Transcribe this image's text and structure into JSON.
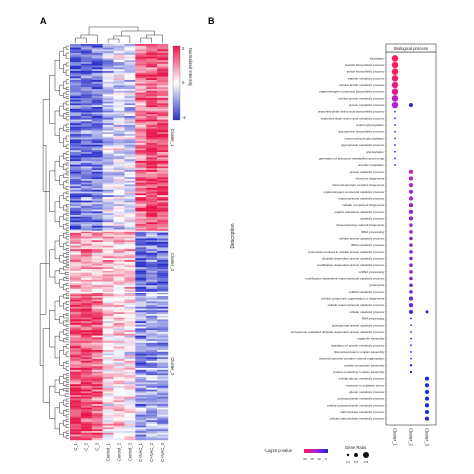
{
  "panel_a": {
    "label": "A",
    "samples": [
      "C_1",
      "C_2",
      "C_3",
      "Control_1",
      "Control_2",
      "Control_3",
      "C+NAC_1",
      "C+NAC_2",
      "C+NAC_3"
    ],
    "colorbar_title": "Normalized Intensity",
    "colorbar_ticks": [
      "2",
      "0",
      "-2"
    ],
    "clusters": [
      "Cluster_1",
      "Cluster_3",
      "Cluster_2"
    ],
    "colors": {
      "high": "#e8174a",
      "mid": "#ffffff",
      "low": "#2a33c9"
    }
  },
  "panel_b": {
    "label": "B",
    "facet_title": "Biological process",
    "x_title": "",
    "y_title": "Description",
    "legend_color_title": "-Log10 p-value",
    "legend_color_ticks": [
      "20",
      "15",
      "10",
      "5"
    ],
    "legend_size_title": "Gene Ratio",
    "legend_size_ticks": [
      "0.1",
      "0.3",
      "0.5"
    ],
    "colors": {
      "high": "#ff1a5e",
      "mid": "#b01fd6",
      "low": "#1a2ad9"
    }
  },
  "chart_data": [
    {
      "type": "heatmap",
      "title": "",
      "columns": [
        "C_1",
        "C_2",
        "C_3",
        "Control_1",
        "Control_2",
        "Control_3",
        "C+NAC_1",
        "C+NAC_2",
        "C+NAC_3"
      ],
      "row_clusters": [
        {
          "name": "Cluster_1",
          "pattern": [
            -1.3,
            -1.2,
            -1.3,
            -0.5,
            -0.3,
            -0.4,
            1.2,
            1.5,
            1.4
          ]
        },
        {
          "name": "Cluster_3",
          "pattern": [
            0.8,
            0.9,
            0.7,
            0.6,
            0.5,
            0.6,
            -1.3,
            -1.2,
            -1.4
          ]
        },
        {
          "name": "Cluster_2",
          "pattern": [
            1.4,
            1.5,
            1.3,
            0.2,
            0.3,
            0.1,
            -1.0,
            -0.8,
            -0.9
          ]
        }
      ],
      "colorbar_range": [
        -2,
        2
      ]
    },
    {
      "type": "scatter",
      "title": "Biological process",
      "x": [
        "Cluster_1",
        "Cluster_2",
        "Cluster_3"
      ],
      "ylabel": "Description",
      "color_range": [
        5,
        20
      ],
      "size_range": [
        0.1,
        0.5
      ],
      "terms": [
        {
          "name": "translation",
          "points": [
            [
              0,
              21,
              0.5
            ]
          ]
        },
        {
          "name": "peptide biosynthetic process",
          "points": [
            [
              0,
              20,
              0.5
            ]
          ]
        },
        {
          "name": "amide biosynthetic process",
          "points": [
            [
              0,
              20,
              0.5
            ]
          ]
        },
        {
          "name": "peptide metabolic process",
          "points": [
            [
              0,
              19,
              0.5
            ]
          ]
        },
        {
          "name": "cellular amide metabolic process",
          "points": [
            [
              0,
              18,
              0.5
            ]
          ]
        },
        {
          "name": "organonitrogen compound biosynthetic process",
          "points": [
            [
              0,
              17,
              0.5
            ]
          ]
        },
        {
          "name": "cellular protein metabolic process",
          "points": [
            [
              0,
              14,
              0.5
            ]
          ]
        },
        {
          "name": "protein metabolic process",
          "points": [
            [
              0,
              13,
              0.5
            ],
            [
              1,
              6,
              0.3
            ]
          ]
        },
        {
          "name": "branched-chain amino acid biosynthetic process",
          "points": [
            [
              0,
              8,
              0.1
            ]
          ]
        },
        {
          "name": "branched-chain amino acid metabolic process",
          "points": [
            [
              0,
              7,
              0.1
            ]
          ]
        },
        {
          "name": "protein glycosylation",
          "points": [
            [
              0,
              7,
              0.1
            ]
          ]
        },
        {
          "name": "glycoprotein biosynthetic process",
          "points": [
            [
              0,
              7,
              0.1
            ]
          ]
        },
        {
          "name": "macromolecule glycosylation",
          "points": [
            [
              0,
              7,
              0.1
            ]
          ]
        },
        {
          "name": "glycoprotein metabolic process",
          "points": [
            [
              0,
              6,
              0.1
            ]
          ]
        },
        {
          "name": "glycosylation",
          "points": [
            [
              0,
              6,
              0.1
            ]
          ]
        },
        {
          "name": "generation of precursor metabolites and energy",
          "points": [
            [
              0,
              6,
              0.1
            ]
          ]
        },
        {
          "name": "aerobic respiration",
          "points": [
            [
              0,
              5,
              0.1
            ]
          ]
        },
        {
          "name": "protein catabolic process",
          "points": [
            [
              1,
              14,
              0.3
            ]
          ]
        },
        {
          "name": "ribosome biogenesis",
          "points": [
            [
              1,
              13,
              0.3
            ]
          ]
        },
        {
          "name": "ribonucleoprotein complex biogenesis",
          "points": [
            [
              1,
              13,
              0.3
            ]
          ]
        },
        {
          "name": "organonitrogen compound catabolic process",
          "points": [
            [
              1,
              12,
              0.3
            ]
          ]
        },
        {
          "name": "macromolecule catabolic process",
          "points": [
            [
              1,
              12,
              0.3
            ]
          ]
        },
        {
          "name": "cellular component biogenesis",
          "points": [
            [
              1,
              11,
              0.3
            ]
          ]
        },
        {
          "name": "organic substance catabolic process",
          "points": [
            [
              1,
              11,
              0.3
            ]
          ]
        },
        {
          "name": "catabolic process",
          "points": [
            [
              1,
              11,
              0.3
            ]
          ]
        },
        {
          "name": "ribosomal large subunit biogenesis",
          "points": [
            [
              1,
              11,
              0.25
            ]
          ]
        },
        {
          "name": "rRNA processing",
          "points": [
            [
              1,
              11,
              0.25
            ]
          ]
        },
        {
          "name": "cellular protein catabolic process",
          "points": [
            [
              1,
              10,
              0.25
            ]
          ]
        },
        {
          "name": "rRNA metabolic process",
          "points": [
            [
              1,
              10,
              0.25
            ]
          ]
        },
        {
          "name": "proteolysis involved in cellular protein catabolic process",
          "points": [
            [
              1,
              10,
              0.25
            ]
          ]
        },
        {
          "name": "ubiquitin-dependent protein catabolic process",
          "points": [
            [
              1,
              10,
              0.25
            ]
          ]
        },
        {
          "name": "modification-dependent protein catabolic process",
          "points": [
            [
              1,
              10,
              0.25
            ]
          ]
        },
        {
          "name": "ncRNA processing",
          "points": [
            [
              1,
              10,
              0.25
            ]
          ]
        },
        {
          "name": "modification-dependent macromolecule catabolic process",
          "points": [
            [
              1,
              10,
              0.25
            ]
          ]
        },
        {
          "name": "proteolysis",
          "points": [
            [
              1,
              9,
              0.25
            ]
          ]
        },
        {
          "name": "ncRNA metabolic process",
          "points": [
            [
              1,
              9,
              0.25
            ]
          ]
        },
        {
          "name": "cellular component organization or biogenesis",
          "points": [
            [
              1,
              9,
              0.3
            ]
          ]
        },
        {
          "name": "cellular macromolecule catabolic process",
          "points": [
            [
              1,
              9,
              0.3
            ]
          ]
        },
        {
          "name": "cellular catabolic process",
          "points": [
            [
              1,
              8,
              0.3
            ],
            [
              2,
              5,
              0.2
            ]
          ]
        },
        {
          "name": "RNA processing",
          "points": [
            [
              1,
              8,
              0.1
            ]
          ]
        },
        {
          "name": "proteasomal protein catabolic process",
          "points": [
            [
              1,
              6,
              0.1
            ]
          ]
        },
        {
          "name": "proteasome-mediated ubiquitin-dependent protein catabolic process",
          "points": [
            [
              1,
              6,
              0.1
            ]
          ]
        },
        {
          "name": "organelle assembly",
          "points": [
            [
              1,
              6,
              0.1
            ]
          ]
        },
        {
          "name": "regulation of protein metabolic process",
          "points": [
            [
              1,
              6,
              0.1
            ]
          ]
        },
        {
          "name": "ribonucleoprotein complex assembly",
          "points": [
            [
              1,
              6,
              0.1
            ]
          ]
        },
        {
          "name": "ribonucleoprotein complex subunit organization",
          "points": [
            [
              1,
              6,
              0.1
            ]
          ]
        },
        {
          "name": "cellular component assembly",
          "points": [
            [
              1,
              5,
              0.15
            ]
          ]
        },
        {
          "name": "protein-containing complex assembly",
          "points": [
            [
              1,
              5,
              0.15
            ]
          ]
        },
        {
          "name": "cellular glucan metabolic process",
          "points": [
            [
              2,
              5,
              0.3
            ]
          ]
        },
        {
          "name": "response to oxidative stress",
          "points": [
            [
              2,
              5,
              0.3
            ]
          ]
        },
        {
          "name": "glucan metabolic process",
          "points": [
            [
              2,
              5,
              0.3
            ]
          ]
        },
        {
          "name": "polysaccharide metabolic process",
          "points": [
            [
              2,
              5,
              0.3
            ]
          ]
        },
        {
          "name": "cellular polysaccharide metabolic process",
          "points": [
            [
              2,
              5,
              0.3
            ]
          ]
        },
        {
          "name": "carbohydrate metabolic process",
          "points": [
            [
              2,
              5,
              0.3
            ]
          ]
        },
        {
          "name": "cellular carbohydrate metabolic process",
          "points": [
            [
              2,
              5,
              0.3
            ]
          ]
        }
      ]
    }
  ]
}
